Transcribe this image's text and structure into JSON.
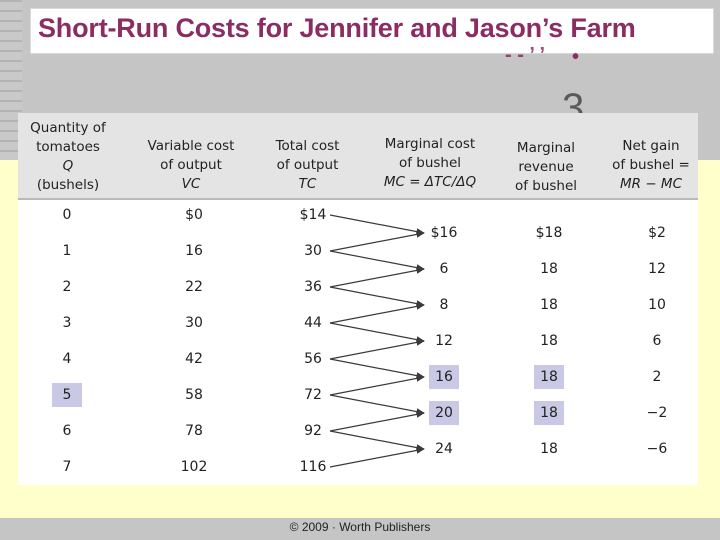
{
  "slide": {
    "title": "Short-Run Costs for Jennifer and Jason’s Farm",
    "ghost_chars": {
      "dash": "- - ’ ’",
      "tick": "•",
      "number": "3"
    },
    "copyright": "© 2009 · Worth Publishers",
    "colors": {
      "title": "#8b2c63",
      "highlight": "#c9c9e6",
      "header_bg": "#e4e4e4",
      "light_band": "#ffffcc"
    }
  },
  "table": {
    "headers": [
      {
        "lines": [
          "Quantity of",
          "tomatoes"
        ],
        "italic": "Q",
        "suffix": "(bushels)"
      },
      {
        "lines": [
          "Variable cost",
          "of output"
        ],
        "italic": "VC"
      },
      {
        "lines": [
          "Total cost",
          "of output"
        ],
        "italic": "TC"
      },
      {
        "lines": [
          "Marginal cost",
          "of bushel"
        ],
        "italic": "MC = ΔTC/ΔQ"
      },
      {
        "lines": [
          "Marginal",
          "revenue",
          "of bushel"
        ]
      },
      {
        "lines": [
          "Net gain",
          "of bushel ="
        ],
        "italic": "MR − MC"
      }
    ],
    "rows": [
      {
        "q": "0",
        "vc": "$0",
        "tc": "$14"
      },
      {
        "q": "1",
        "vc": "16",
        "tc": "30"
      },
      {
        "q": "2",
        "vc": "22",
        "tc": "36"
      },
      {
        "q": "3",
        "vc": "30",
        "tc": "44"
      },
      {
        "q": "4",
        "vc": "42",
        "tc": "56"
      },
      {
        "q": "5",
        "vc": "58",
        "tc": "72",
        "highlight": true
      },
      {
        "q": "6",
        "vc": "78",
        "tc": "92"
      },
      {
        "q": "7",
        "vc": "102",
        "tc": "116"
      }
    ],
    "marginal_rows": [
      {
        "mc": "$16",
        "mr": "$18",
        "net": "$2"
      },
      {
        "mc": "6",
        "mr": "18",
        "net": "12"
      },
      {
        "mc": "8",
        "mr": "18",
        "net": "10"
      },
      {
        "mc": "12",
        "mr": "18",
        "net": "6"
      },
      {
        "mc": "16",
        "mr": "18",
        "net": "2",
        "highlight": true
      },
      {
        "mc": "20",
        "mr": "18",
        "net": "−2",
        "highlight": true
      },
      {
        "mc": "24",
        "mr": "18",
        "net": "−6"
      }
    ]
  }
}
